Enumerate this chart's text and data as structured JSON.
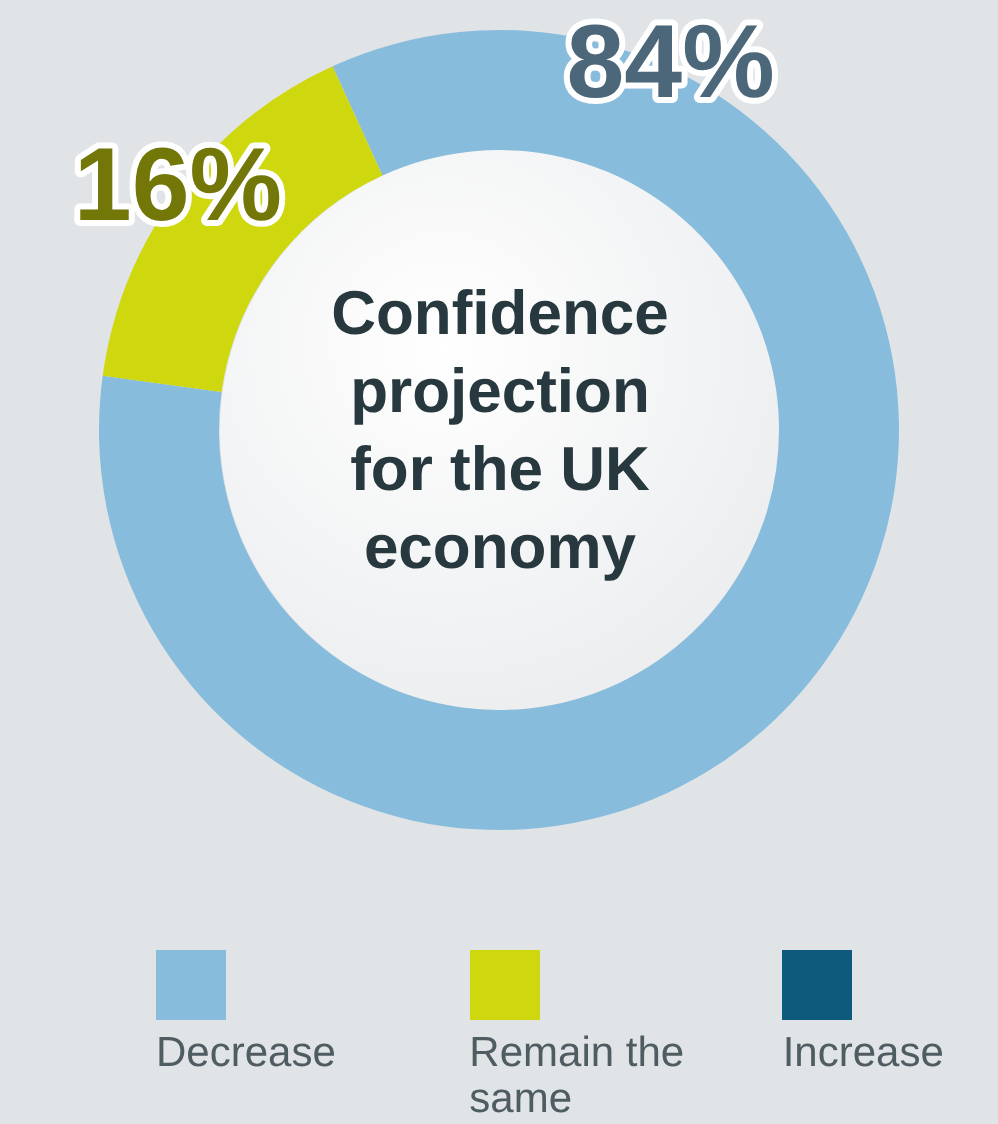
{
  "chart_data": {
    "type": "donut",
    "title": "Confidence projection for the UK economy",
    "categories": [
      "Decrease",
      "Remain the same",
      "Increase"
    ],
    "values": [
      84,
      16,
      0
    ],
    "colors": [
      "#88bcdc",
      "#cfd80f",
      "#0e5a7c"
    ],
    "value_labels": [
      "84%",
      "16%",
      null
    ],
    "legend": "bottom"
  }
}
